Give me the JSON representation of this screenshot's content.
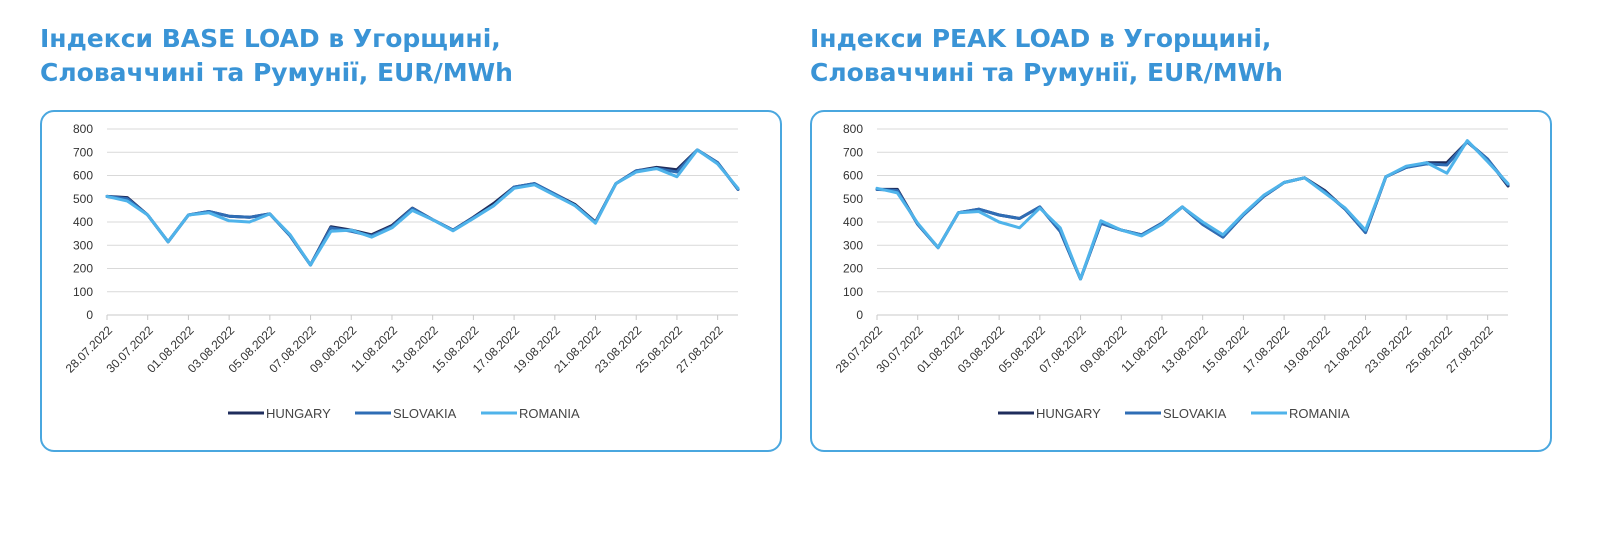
{
  "chart_data": [
    {
      "type": "line",
      "title_lines": [
        "Індекси BASE LOAD в Угорщині,",
        "Словаччині та Румунії, EUR/MWh"
      ],
      "ylim": [
        0,
        800
      ],
      "yticks": [
        "0",
        "100",
        "200",
        "300",
        "400",
        "500",
        "600",
        "700",
        "800"
      ],
      "x": [
        "28.07.2022",
        "29.07.2022",
        "30.07.2022",
        "31.07.2022",
        "01.08.2022",
        "02.08.2022",
        "03.08.2022",
        "04.08.2022",
        "05.08.2022",
        "06.08.2022",
        "07.08.2022",
        "08.08.2022",
        "09.08.2022",
        "10.08.2022",
        "11.08.2022",
        "12.08.2022",
        "13.08.2022",
        "14.08.2022",
        "15.08.2022",
        "16.08.2022",
        "17.08.2022",
        "18.08.2022",
        "19.08.2022",
        "20.08.2022",
        "21.08.2022",
        "22.08.2022",
        "23.08.2022",
        "24.08.2022",
        "25.08.2022",
        "26.08.2022",
        "27.08.2022",
        "28.08.2022"
      ],
      "xtick_labels": [
        "28.07.2022",
        "30.07.2022",
        "01.08.2022",
        "03.08.2022",
        "05.08.2022",
        "07.08.2022",
        "09.08.2022",
        "11.08.2022",
        "13.08.2022",
        "15.08.2022",
        "17.08.2022",
        "19.08.2022",
        "21.08.2022",
        "23.08.2022",
        "25.08.2022",
        "27.08.2022"
      ],
      "grid": true,
      "legend": "bottom",
      "series": [
        {
          "name": "HUNGARY",
          "color": "#1f2d5c",
          "values": [
            510,
            505,
            430,
            315,
            430,
            445,
            425,
            420,
            435,
            340,
            215,
            380,
            365,
            345,
            385,
            460,
            410,
            365,
            420,
            480,
            550,
            565,
            520,
            475,
            400,
            565,
            620,
            635,
            625,
            710,
            655,
            540
          ]
        },
        {
          "name": "SLOVAKIA",
          "color": "#2f6db5",
          "values": [
            510,
            500,
            430,
            315,
            430,
            445,
            425,
            420,
            435,
            340,
            215,
            375,
            360,
            340,
            380,
            458,
            410,
            365,
            418,
            470,
            550,
            565,
            520,
            470,
            398,
            565,
            620,
            630,
            615,
            710,
            655,
            540
          ]
        },
        {
          "name": "ROMANIA",
          "color": "#4fb3ea",
          "values": [
            510,
            490,
            430,
            315,
            430,
            440,
            405,
            400,
            435,
            345,
            215,
            360,
            365,
            335,
            375,
            450,
            410,
            362,
            415,
            470,
            545,
            560,
            515,
            470,
            395,
            565,
            615,
            630,
            595,
            710,
            650,
            545
          ]
        }
      ]
    },
    {
      "type": "line",
      "title_lines": [
        "Індекси PEAK LOAD в Угорщині,",
        "Словаччині та Румунії, EUR/MWh"
      ],
      "ylim": [
        0,
        800
      ],
      "yticks": [
        "0",
        "100",
        "200",
        "300",
        "400",
        "500",
        "600",
        "700",
        "800"
      ],
      "x": [
        "28.07.2022",
        "29.07.2022",
        "30.07.2022",
        "31.07.2022",
        "01.08.2022",
        "02.08.2022",
        "03.08.2022",
        "04.08.2022",
        "05.08.2022",
        "06.08.2022",
        "07.08.2022",
        "08.08.2022",
        "09.08.2022",
        "10.08.2022",
        "11.08.2022",
        "12.08.2022",
        "13.08.2022",
        "14.08.2022",
        "15.08.2022",
        "16.08.2022",
        "17.08.2022",
        "18.08.2022",
        "19.08.2022",
        "20.08.2022",
        "21.08.2022",
        "22.08.2022",
        "23.08.2022",
        "24.08.2022",
        "25.08.2022",
        "26.08.2022",
        "27.08.2022",
        "28.08.2022"
      ],
      "xtick_labels": [
        "28.07.2022",
        "30.07.2022",
        "01.08.2022",
        "03.08.2022",
        "05.08.2022",
        "07.08.2022",
        "09.08.2022",
        "11.08.2022",
        "13.08.2022",
        "15.08.2022",
        "17.08.2022",
        "19.08.2022",
        "21.08.2022",
        "23.08.2022",
        "25.08.2022",
        "27.08.2022"
      ],
      "grid": true,
      "legend": "bottom",
      "series": [
        {
          "name": "HUNGARY",
          "color": "#1f2d5c",
          "values": [
            540,
            540,
            390,
            290,
            440,
            455,
            430,
            415,
            465,
            360,
            155,
            395,
            365,
            345,
            395,
            465,
            390,
            335,
            430,
            510,
            570,
            590,
            535,
            455,
            355,
            595,
            635,
            655,
            655,
            745,
            670,
            555
          ]
        },
        {
          "name": "SLOVAKIA",
          "color": "#2f6db5",
          "values": [
            540,
            535,
            390,
            290,
            440,
            455,
            430,
            415,
            465,
            360,
            155,
            395,
            365,
            345,
            395,
            465,
            390,
            335,
            430,
            510,
            570,
            590,
            530,
            455,
            355,
            595,
            635,
            650,
            645,
            745,
            670,
            560
          ]
        },
        {
          "name": "ROMANIA",
          "color": "#4fb3ea",
          "values": [
            545,
            525,
            395,
            290,
            440,
            445,
            400,
            375,
            460,
            375,
            155,
            405,
            365,
            340,
            390,
            465,
            400,
            345,
            435,
            515,
            570,
            590,
            525,
            460,
            365,
            595,
            640,
            655,
            610,
            750,
            660,
            565
          ]
        }
      ]
    }
  ]
}
